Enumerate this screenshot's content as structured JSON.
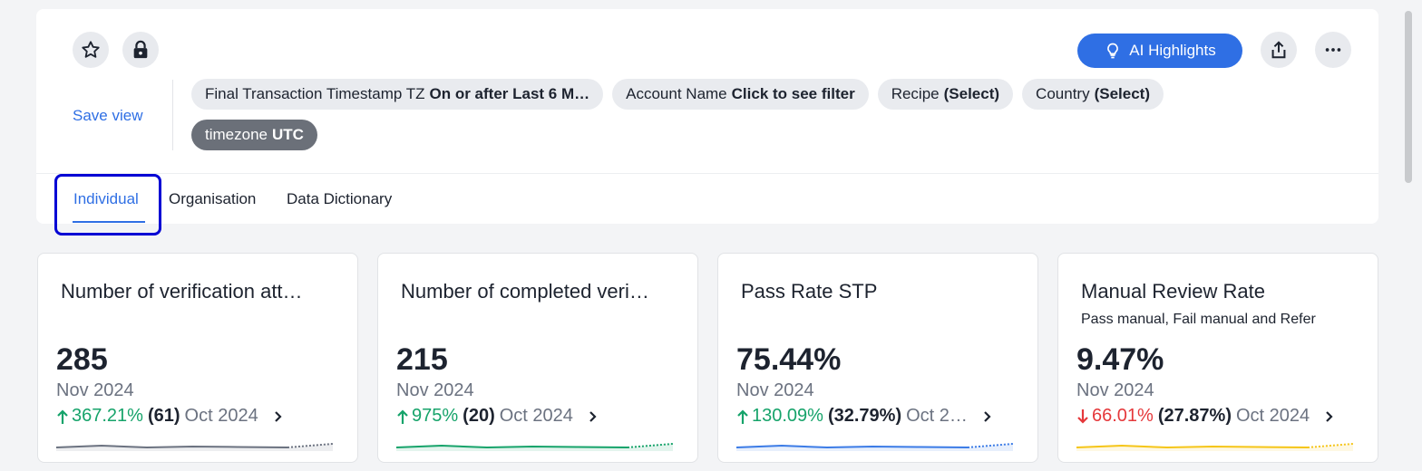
{
  "header": {
    "save_view": "Save view",
    "ai_button": "AI Highlights",
    "filters": [
      {
        "label": "Final Transaction Timestamp TZ",
        "value": "On or after Last 6 M…"
      },
      {
        "label": "Account Name",
        "value": "Click to see filter"
      },
      {
        "label": "Recipe",
        "value": "(Select)"
      },
      {
        "label": "Country",
        "value": "(Select)"
      },
      {
        "label": "timezone",
        "value": "UTC"
      }
    ]
  },
  "tabs": [
    "Individual",
    "Organisation",
    "Data Dictionary"
  ],
  "cards": [
    {
      "title": "Number of verification att…",
      "subtitle": null,
      "value": "285",
      "period": "Nov 2024",
      "change": "367.21%",
      "change_value": "(61)",
      "comparison_period": "Oct 2024",
      "direction": "up",
      "sparkline_color": "#6b7280"
    },
    {
      "title": "Number of completed veri…",
      "subtitle": null,
      "value": "215",
      "period": "Nov 2024",
      "change": "975%",
      "change_value": "(20)",
      "comparison_period": "Oct 2024",
      "direction": "up",
      "sparkline_color": "#16a36a"
    },
    {
      "title": "Pass Rate STP",
      "subtitle": null,
      "value": "75.44%",
      "period": "Nov 2024",
      "change": "130.09%",
      "change_value": "(32.79%)",
      "comparison_period": "Oct 2…",
      "direction": "up",
      "sparkline_color": "#3b7be6"
    },
    {
      "title": "Manual Review Rate",
      "subtitle": "Pass manual, Fail manual and Refer",
      "value": "9.47%",
      "period": "Nov 2024",
      "change": "66.01%",
      "change_value": "(27.87%)",
      "comparison_period": "Oct 2024",
      "direction": "down",
      "sparkline_color": "#f5c518"
    }
  ]
}
